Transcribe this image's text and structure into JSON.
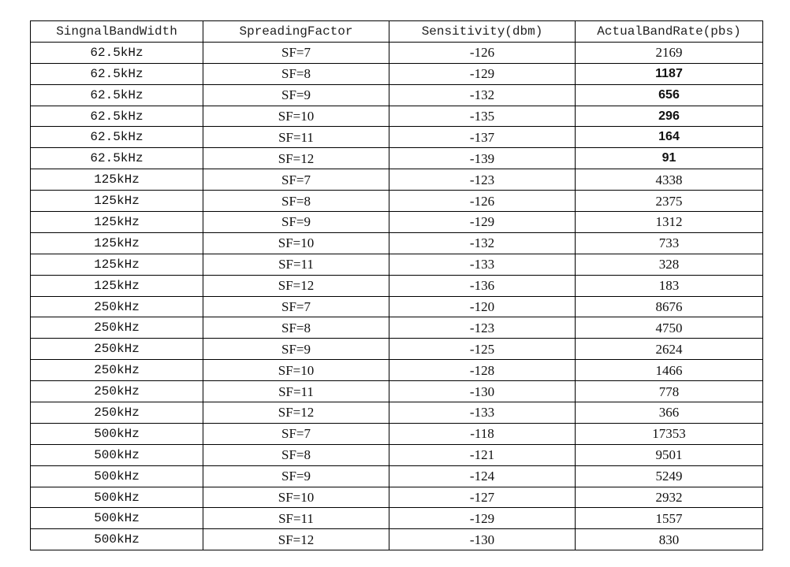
{
  "headers": [
    "SingnalBandWidth",
    "SpreadingFactor",
    "Sensitivity(dbm)",
    "ActualBandRate(pbs)"
  ],
  "rows": [
    {
      "bandwidth": "62.5kHz",
      "sf": "SF=7",
      "sensitivity": "-126",
      "rate": "2169"
    },
    {
      "bandwidth": "62.5kHz",
      "sf": "SF=8",
      "sensitivity": "-129",
      "rate": "1187",
      "bold": true
    },
    {
      "bandwidth": "62.5kHz",
      "sf": "SF=9",
      "sensitivity": "-132",
      "rate": "656",
      "bold": true
    },
    {
      "bandwidth": "62.5kHz",
      "sf": "SF=10",
      "sensitivity": "-135",
      "rate": "296",
      "bold": true
    },
    {
      "bandwidth": "62.5kHz",
      "sf": "SF=11",
      "sensitivity": "-137",
      "rate": "164",
      "bold": true
    },
    {
      "bandwidth": "62.5kHz",
      "sf": "SF=12",
      "sensitivity": "-139",
      "rate": "91",
      "bold": true
    },
    {
      "bandwidth": "125kHz",
      "sf": "SF=7",
      "sensitivity": "-123",
      "rate": "4338"
    },
    {
      "bandwidth": "125kHz",
      "sf": "SF=8",
      "sensitivity": "-126",
      "rate": "2375"
    },
    {
      "bandwidth": "125kHz",
      "sf": "SF=9",
      "sensitivity": "-129",
      "rate": "1312"
    },
    {
      "bandwidth": "125kHz",
      "sf": "SF=10",
      "sensitivity": "-132",
      "rate": "733"
    },
    {
      "bandwidth": "125kHz",
      "sf": "SF=11",
      "sensitivity": "-133",
      "rate": "328"
    },
    {
      "bandwidth": "125kHz",
      "sf": "SF=12",
      "sensitivity": "-136",
      "rate": "183"
    },
    {
      "bandwidth": "250kHz",
      "sf": "SF=7",
      "sensitivity": "-120",
      "rate": "8676"
    },
    {
      "bandwidth": "250kHz",
      "sf": "SF=8",
      "sensitivity": "-123",
      "rate": "4750"
    },
    {
      "bandwidth": "250kHz",
      "sf": "SF=9",
      "sensitivity": "-125",
      "rate": "2624"
    },
    {
      "bandwidth": "250kHz",
      "sf": "SF=10",
      "sensitivity": "-128",
      "rate": "1466"
    },
    {
      "bandwidth": "250kHz",
      "sf": "SF=11",
      "sensitivity": "-130",
      "rate": "778"
    },
    {
      "bandwidth": "250kHz",
      "sf": "SF=12",
      "sensitivity": "-133",
      "rate": "366"
    },
    {
      "bandwidth": "500kHz",
      "sf": "SF=7",
      "sensitivity": "-118",
      "rate": "17353"
    },
    {
      "bandwidth": "500kHz",
      "sf": "SF=8",
      "sensitivity": "-121",
      "rate": "9501"
    },
    {
      "bandwidth": "500kHz",
      "sf": "SF=9",
      "sensitivity": "-124",
      "rate": "5249"
    },
    {
      "bandwidth": "500kHz",
      "sf": "SF=10",
      "sensitivity": "-127",
      "rate": "2932"
    },
    {
      "bandwidth": "500kHz",
      "sf": "SF=11",
      "sensitivity": "-129",
      "rate": "1557"
    },
    {
      "bandwidth": "500kHz",
      "sf": "SF=12",
      "sensitivity": "-130",
      "rate": "830"
    }
  ]
}
